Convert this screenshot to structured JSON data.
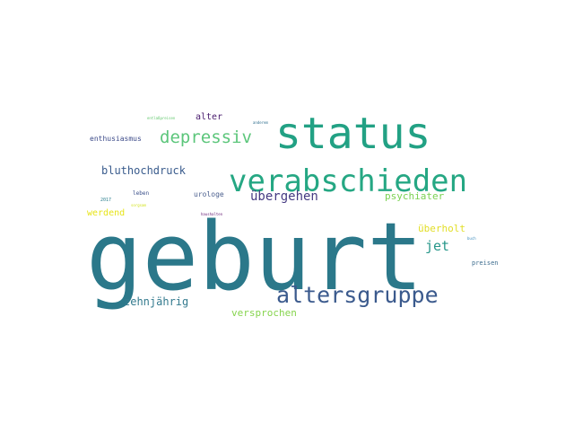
{
  "words": [
    {
      "text": "geburt",
      "color": "#2b788a"
    },
    {
      "text": "status",
      "color": "#22a184"
    },
    {
      "text": "verabschieden",
      "color": "#25a783"
    },
    {
      "text": "altersgruppe",
      "color": "#3b5a8d"
    },
    {
      "text": "depressiv",
      "color": "#5cc67b"
    },
    {
      "text": "übergehen",
      "color": "#453a82"
    },
    {
      "text": "bluthochdruck",
      "color": "#3a5c8d"
    },
    {
      "text": "psychiater",
      "color": "#7ad151"
    },
    {
      "text": "jet",
      "color": "#27978a"
    },
    {
      "text": "überholt",
      "color": "#e2de27"
    },
    {
      "text": "zehnjährig",
      "color": "#337a8e"
    },
    {
      "text": "versprochen",
      "color": "#86d44e"
    },
    {
      "text": "werdend",
      "color": "#e7e419"
    },
    {
      "text": "alter",
      "color": "#481b6d"
    },
    {
      "text": "enthusiasmus",
      "color": "#3e4c8a"
    },
    {
      "text": "urologe",
      "color": "#4b5f8e"
    },
    {
      "text": "preisen",
      "color": "#3d6c8e"
    },
    {
      "text": "leben",
      "color": "#3a4f8a"
    },
    {
      "text": "2017",
      "color": "#2c7f8e"
    },
    {
      "text": "haushalten",
      "color": "#6a2178"
    },
    {
      "text": "entlaßpreisen",
      "color": "#63c86e"
    },
    {
      "text": "anderem",
      "color": "#2e6e8e"
    },
    {
      "text": "sorgsam",
      "color": "#d2e21b"
    },
    {
      "text": "buch",
      "color": "#3b8bbd"
    }
  ]
}
